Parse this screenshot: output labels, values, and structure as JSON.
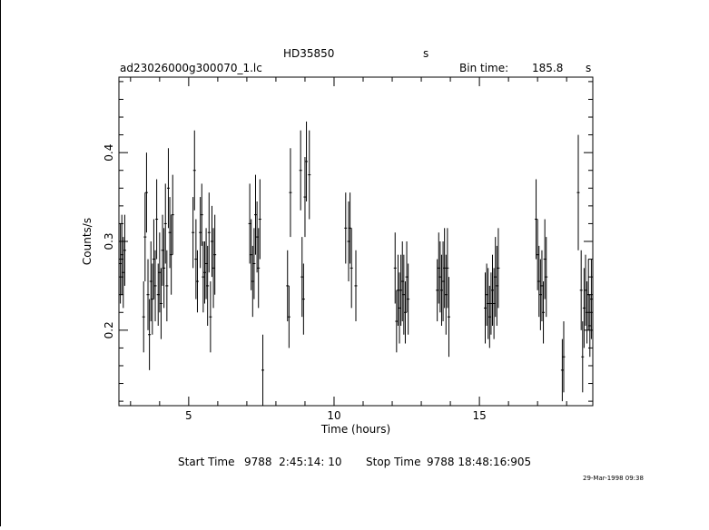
{
  "header": {
    "object": "HD35850",
    "object_unit": "s",
    "filename": "ad23026000g300070_1.lc",
    "bin_time_label": "Bin time:",
    "bin_time_value": "185.8",
    "bin_time_unit": "s"
  },
  "footer": {
    "start_label": "Start Time",
    "start_value": "9788  2:45:14: 10",
    "stop_label": "Stop Time",
    "stop_value": "9788 18:48:16:905",
    "date": "29-Mar-1998 09:38"
  },
  "chart_data": {
    "type": "scatter",
    "title": "",
    "xlabel": "Time (hours)",
    "ylabel": "Counts/s",
    "xlim": [
      2.6,
      18.9
    ],
    "ylim": [
      0.115,
      0.485
    ],
    "xticks_major": [
      5,
      10,
      15
    ],
    "xticks_labels": [
      "5",
      "10",
      "15"
    ],
    "yticks_major": [
      0.2,
      0.3,
      0.4
    ],
    "yticks_labels": [
      "0.2",
      "0.3",
      "0.4"
    ],
    "error_bars": true,
    "points": [
      {
        "x": 2.65,
        "y": 0.275,
        "e": 0.045
      },
      {
        "x": 2.7,
        "y": 0.285,
        "e": 0.045
      },
      {
        "x": 2.75,
        "y": 0.265,
        "e": 0.04
      },
      {
        "x": 2.8,
        "y": 0.29,
        "e": 0.04
      },
      {
        "x": 3.45,
        "y": 0.215,
        "e": 0.04
      },
      {
        "x": 3.5,
        "y": 0.305,
        "e": 0.05
      },
      {
        "x": 3.55,
        "y": 0.355,
        "e": 0.045
      },
      {
        "x": 3.6,
        "y": 0.24,
        "e": 0.04
      },
      {
        "x": 3.65,
        "y": 0.195,
        "e": 0.04
      },
      {
        "x": 3.7,
        "y": 0.255,
        "e": 0.045
      },
      {
        "x": 3.75,
        "y": 0.235,
        "e": 0.04
      },
      {
        "x": 3.8,
        "y": 0.28,
        "e": 0.045
      },
      {
        "x": 3.85,
        "y": 0.25,
        "e": 0.04
      },
      {
        "x": 3.9,
        "y": 0.325,
        "e": 0.045
      },
      {
        "x": 3.95,
        "y": 0.24,
        "e": 0.035
      },
      {
        "x": 4.0,
        "y": 0.265,
        "e": 0.045
      },
      {
        "x": 4.05,
        "y": 0.23,
        "e": 0.04
      },
      {
        "x": 4.1,
        "y": 0.29,
        "e": 0.04
      },
      {
        "x": 4.15,
        "y": 0.27,
        "e": 0.045
      },
      {
        "x": 4.2,
        "y": 0.32,
        "e": 0.045
      },
      {
        "x": 4.25,
        "y": 0.25,
        "e": 0.04
      },
      {
        "x": 4.3,
        "y": 0.36,
        "e": 0.045
      },
      {
        "x": 4.35,
        "y": 0.31,
        "e": 0.04
      },
      {
        "x": 4.4,
        "y": 0.285,
        "e": 0.045
      },
      {
        "x": 4.45,
        "y": 0.33,
        "e": 0.045
      },
      {
        "x": 5.15,
        "y": 0.31,
        "e": 0.04
      },
      {
        "x": 5.2,
        "y": 0.38,
        "e": 0.045
      },
      {
        "x": 5.25,
        "y": 0.28,
        "e": 0.045
      },
      {
        "x": 5.3,
        "y": 0.255,
        "e": 0.035
      },
      {
        "x": 5.4,
        "y": 0.31,
        "e": 0.04
      },
      {
        "x": 5.45,
        "y": 0.33,
        "e": 0.035
      },
      {
        "x": 5.5,
        "y": 0.26,
        "e": 0.04
      },
      {
        "x": 5.55,
        "y": 0.265,
        "e": 0.035
      },
      {
        "x": 5.6,
        "y": 0.275,
        "e": 0.04
      },
      {
        "x": 5.65,
        "y": 0.25,
        "e": 0.045
      },
      {
        "x": 5.7,
        "y": 0.31,
        "e": 0.045
      },
      {
        "x": 5.75,
        "y": 0.215,
        "e": 0.04
      },
      {
        "x": 5.8,
        "y": 0.3,
        "e": 0.04
      },
      {
        "x": 5.85,
        "y": 0.27,
        "e": 0.045
      },
      {
        "x": 5.9,
        "y": 0.285,
        "e": 0.045
      },
      {
        "x": 7.1,
        "y": 0.32,
        "e": 0.045
      },
      {
        "x": 7.15,
        "y": 0.285,
        "e": 0.04
      },
      {
        "x": 7.2,
        "y": 0.255,
        "e": 0.04
      },
      {
        "x": 7.25,
        "y": 0.275,
        "e": 0.04
      },
      {
        "x": 7.3,
        "y": 0.33,
        "e": 0.045
      },
      {
        "x": 7.35,
        "y": 0.305,
        "e": 0.04
      },
      {
        "x": 7.4,
        "y": 0.27,
        "e": 0.045
      },
      {
        "x": 7.45,
        "y": 0.325,
        "e": 0.045
      },
      {
        "x": 7.55,
        "y": 0.155,
        "e": 0.04
      },
      {
        "x": 8.4,
        "y": 0.25,
        "e": 0.04
      },
      {
        "x": 8.45,
        "y": 0.215,
        "e": 0.035
      },
      {
        "x": 8.5,
        "y": 0.355,
        "e": 0.05
      },
      {
        "x": 8.85,
        "y": 0.38,
        "e": 0.045
      },
      {
        "x": 8.9,
        "y": 0.26,
        "e": 0.045
      },
      {
        "x": 8.95,
        "y": 0.235,
        "e": 0.04
      },
      {
        "x": 9.0,
        "y": 0.35,
        "e": 0.045
      },
      {
        "x": 9.05,
        "y": 0.39,
        "e": 0.045
      },
      {
        "x": 9.15,
        "y": 0.375,
        "e": 0.05
      },
      {
        "x": 10.4,
        "y": 0.315,
        "e": 0.04
      },
      {
        "x": 10.5,
        "y": 0.3,
        "e": 0.045
      },
      {
        "x": 10.55,
        "y": 0.315,
        "e": 0.04
      },
      {
        "x": 10.6,
        "y": 0.27,
        "e": 0.045
      },
      {
        "x": 10.75,
        "y": 0.25,
        "e": 0.04
      },
      {
        "x": 12.1,
        "y": 0.27,
        "e": 0.04
      },
      {
        "x": 12.15,
        "y": 0.21,
        "e": 0.035
      },
      {
        "x": 12.2,
        "y": 0.245,
        "e": 0.04
      },
      {
        "x": 12.25,
        "y": 0.225,
        "e": 0.04
      },
      {
        "x": 12.3,
        "y": 0.245,
        "e": 0.04
      },
      {
        "x": 12.35,
        "y": 0.255,
        "e": 0.045
      },
      {
        "x": 12.4,
        "y": 0.24,
        "e": 0.045
      },
      {
        "x": 12.45,
        "y": 0.22,
        "e": 0.035
      },
      {
        "x": 12.5,
        "y": 0.26,
        "e": 0.04
      },
      {
        "x": 12.55,
        "y": 0.235,
        "e": 0.04
      },
      {
        "x": 13.55,
        "y": 0.245,
        "e": 0.035
      },
      {
        "x": 13.6,
        "y": 0.27,
        "e": 0.04
      },
      {
        "x": 13.65,
        "y": 0.26,
        "e": 0.04
      },
      {
        "x": 13.7,
        "y": 0.245,
        "e": 0.04
      },
      {
        "x": 13.75,
        "y": 0.255,
        "e": 0.045
      },
      {
        "x": 13.8,
        "y": 0.27,
        "e": 0.045
      },
      {
        "x": 13.85,
        "y": 0.24,
        "e": 0.045
      },
      {
        "x": 13.9,
        "y": 0.27,
        "e": 0.045
      },
      {
        "x": 13.95,
        "y": 0.215,
        "e": 0.045
      },
      {
        "x": 15.2,
        "y": 0.225,
        "e": 0.04
      },
      {
        "x": 15.25,
        "y": 0.24,
        "e": 0.035
      },
      {
        "x": 15.3,
        "y": 0.23,
        "e": 0.04
      },
      {
        "x": 15.35,
        "y": 0.215,
        "e": 0.035
      },
      {
        "x": 15.4,
        "y": 0.23,
        "e": 0.035
      },
      {
        "x": 15.45,
        "y": 0.245,
        "e": 0.04
      },
      {
        "x": 15.5,
        "y": 0.23,
        "e": 0.04
      },
      {
        "x": 15.55,
        "y": 0.26,
        "e": 0.045
      },
      {
        "x": 15.6,
        "y": 0.25,
        "e": 0.045
      },
      {
        "x": 15.65,
        "y": 0.27,
        "e": 0.045
      },
      {
        "x": 16.95,
        "y": 0.325,
        "e": 0.045
      },
      {
        "x": 17.0,
        "y": 0.285,
        "e": 0.04
      },
      {
        "x": 17.05,
        "y": 0.255,
        "e": 0.04
      },
      {
        "x": 17.1,
        "y": 0.24,
        "e": 0.04
      },
      {
        "x": 17.15,
        "y": 0.25,
        "e": 0.04
      },
      {
        "x": 17.2,
        "y": 0.22,
        "e": 0.035
      },
      {
        "x": 17.25,
        "y": 0.28,
        "e": 0.045
      },
      {
        "x": 17.3,
        "y": 0.26,
        "e": 0.045
      },
      {
        "x": 17.85,
        "y": 0.155,
        "e": 0.035
      },
      {
        "x": 17.9,
        "y": 0.17,
        "e": 0.04
      },
      {
        "x": 18.4,
        "y": 0.355,
        "e": 0.065
      },
      {
        "x": 18.5,
        "y": 0.245,
        "e": 0.045
      },
      {
        "x": 18.55,
        "y": 0.17,
        "e": 0.04
      },
      {
        "x": 18.6,
        "y": 0.225,
        "e": 0.045
      },
      {
        "x": 18.65,
        "y": 0.245,
        "e": 0.04
      },
      {
        "x": 18.7,
        "y": 0.22,
        "e": 0.035
      },
      {
        "x": 18.75,
        "y": 0.24,
        "e": 0.04
      },
      {
        "x": 18.8,
        "y": 0.205,
        "e": 0.035
      },
      {
        "x": 18.85,
        "y": 0.235,
        "e": 0.045
      }
    ]
  }
}
